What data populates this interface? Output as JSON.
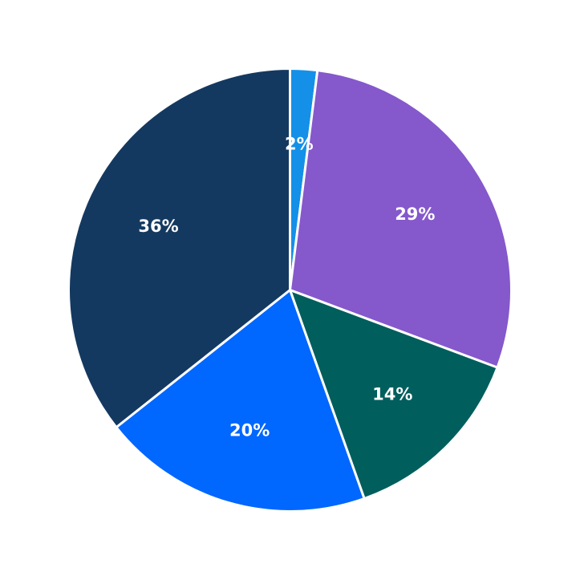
{
  "chart_data": {
    "type": "pie",
    "labels": [
      "2%",
      "29%",
      "14%",
      "20%",
      "36%"
    ],
    "values": [
      2,
      29,
      14,
      20,
      36
    ],
    "colors": [
      "#1490e8",
      "#8558cc",
      "#005e5d",
      "#0067ff",
      "#143960"
    ],
    "start_angle": "top",
    "direction": "clockwise",
    "legend": "none",
    "title": ""
  }
}
